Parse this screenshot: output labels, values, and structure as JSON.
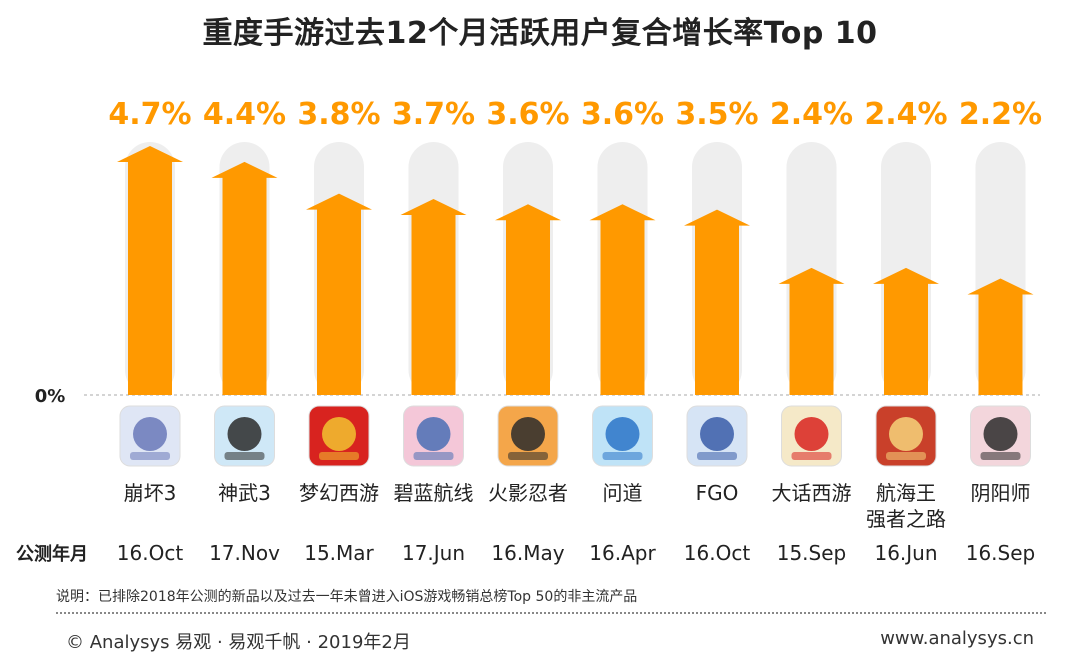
{
  "chart_data": {
    "type": "bar",
    "title": "重度手游过去12个月活跃用户复合增长率Top 10",
    "categories": [
      "崩坏3",
      "神武3",
      "梦幻西游",
      "碧蓝航线",
      "火影忍者",
      "问道",
      "FGO",
      "大话西游",
      "航海王\n强者之路",
      "阴阳师"
    ],
    "values": [
      4.7,
      4.4,
      3.8,
      3.7,
      3.6,
      3.6,
      3.5,
      2.4,
      2.4,
      2.2
    ],
    "value_labels": [
      "4.7%",
      "4.4%",
      "3.8%",
      "3.7%",
      "3.6%",
      "3.6%",
      "3.5%",
      "2.4%",
      "2.4%",
      "2.2%"
    ],
    "launch_dates": [
      "16.Oct",
      "17.Nov",
      "15.Mar",
      "17.Jun",
      "16.May",
      "16.Apr",
      "16.Oct",
      "15.Sep",
      "16.Jun",
      "16.Sep"
    ],
    "row_label": "公测年月",
    "y_zero_label": "0%",
    "ylim": [
      0,
      5
    ],
    "colors": {
      "bar": "#ff9900",
      "value_label": "#ff9900",
      "track": "#eeeeee",
      "baseline": "#aaaaaa"
    },
    "icons": [
      "honkai3-icon",
      "shenwu3-icon",
      "menghuan-xiyou-icon",
      "azur-lane-icon",
      "naruto-icon",
      "wendao-icon",
      "fgo-icon",
      "dahua-xiyou-icon",
      "one-piece-icon",
      "onmyoji-icon"
    ]
  },
  "footnote": "说明：已排除2018年公测的新品以及过去一年未曾进入iOS游戏畅销总榜Top 50的非主流产品",
  "footer": {
    "copyright": "© Analysys 易观 · 易观千帆 · 2019年2月",
    "website": "www.analysys.cn"
  }
}
